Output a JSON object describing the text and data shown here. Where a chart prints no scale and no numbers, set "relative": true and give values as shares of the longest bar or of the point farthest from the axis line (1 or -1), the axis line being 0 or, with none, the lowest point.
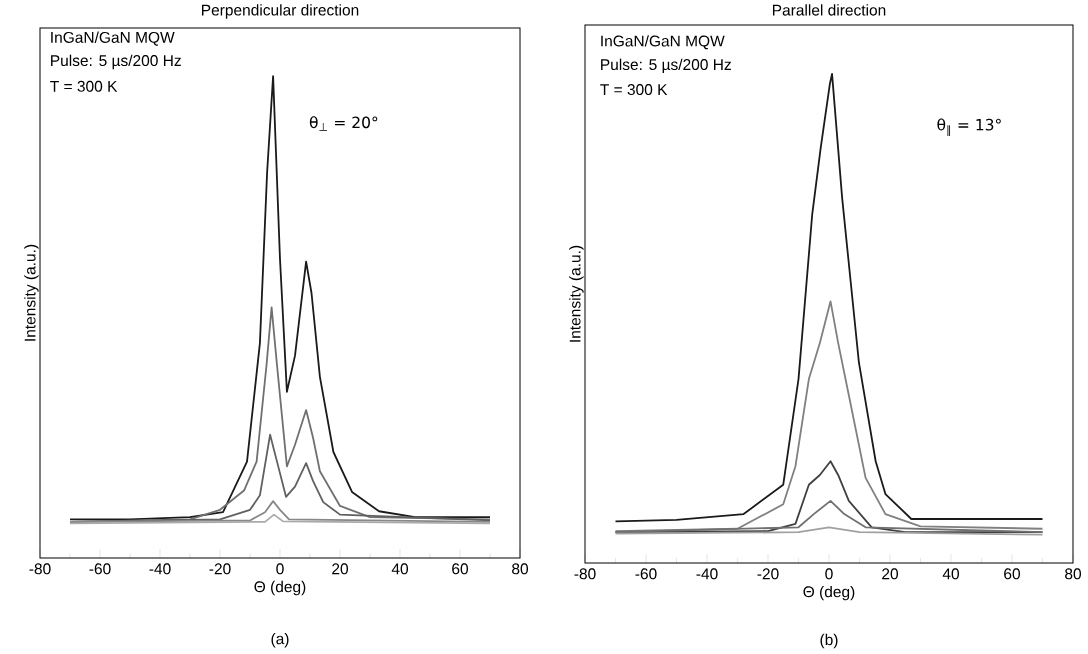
{
  "chart_data": [
    {
      "type": "line",
      "title": "Perpendicular direction",
      "xlabel": "Θ (deg)",
      "ylabel": "Intensity (a.u.)",
      "relative": true,
      "xlim": [
        -80,
        80
      ],
      "xticks": [
        -80,
        -60,
        -40,
        -20,
        0,
        20,
        40,
        60,
        80
      ],
      "tick_labels": "x",
      "grid": false,
      "marker": "none",
      "line_style": "solid",
      "annotations": [
        "InGaN/GaN MQW",
        "Pulse: 5 µs/200 Hz",
        "T = 300 K",
        "θ$_{⊥}$ = 20°",
        "(a)"
      ],
      "series": [
        {
          "color": "#1a1a1a",
          "x": [
            -70,
            -50,
            -30,
            -19,
            -11,
            -6.7,
            -4.3,
            -2.3,
            0,
            2.3,
            5,
            8.7,
            10.5,
            13.3,
            17.8,
            24,
            33,
            45,
            70
          ],
          "values": [
            0.08,
            0.08,
            0.085,
            0.095,
            0.2,
            0.446,
            0.8,
            1.0,
            0.62,
            0.345,
            0.42,
            0.615,
            0.55,
            0.376,
            0.22,
            0.137,
            0.097,
            0.085,
            0.085
          ]
        },
        {
          "color": "#707070",
          "x": [
            -70,
            -30,
            -20,
            -12,
            -7.8,
            -4.5,
            -2.8,
            -1,
            2.3,
            5,
            8.7,
            11,
            13.3,
            20,
            30,
            70
          ],
          "values": [
            0.075,
            0.08,
            0.1,
            0.14,
            0.2,
            0.4,
            0.52,
            0.4,
            0.19,
            0.235,
            0.307,
            0.25,
            0.18,
            0.108,
            0.085,
            0.08
          ]
        },
        {
          "color": "#606060",
          "x": [
            -70,
            -20,
            -10,
            -6.7,
            -3.3,
            -1,
            2,
            5,
            8.7,
            11,
            14.4,
            20,
            70
          ],
          "values": [
            0.075,
            0.08,
            0.1,
            0.13,
            0.256,
            0.2,
            0.127,
            0.148,
            0.197,
            0.16,
            0.116,
            0.09,
            0.078
          ]
        },
        {
          "color": "#888888",
          "x": [
            -70,
            -10,
            -5,
            -2.3,
            0,
            3,
            70
          ],
          "values": [
            0.075,
            0.078,
            0.095,
            0.118,
            0.1,
            0.08,
            0.075
          ]
        },
        {
          "color": "#aaaaaa",
          "x": [
            -70,
            -5,
            -2,
            1,
            70
          ],
          "values": [
            0.072,
            0.075,
            0.09,
            0.076,
            0.072
          ]
        }
      ]
    },
    {
      "type": "line",
      "title": "Parallel direction",
      "xlabel": "Θ (deg)",
      "ylabel": "Intensity (a.u.)",
      "relative": true,
      "xlim": [
        -80,
        80
      ],
      "xticks": [
        -80,
        -60,
        -40,
        -20,
        0,
        20,
        40,
        60,
        80
      ],
      "tick_labels": "x",
      "grid": false,
      "marker": "none",
      "line_style": "solid",
      "annotations": [
        "InGaN/GaN MQW",
        "Pulse: 5 µs/200 Hz",
        "T = 300 K",
        "θ$_{∥}$ = 13°",
        "(b)"
      ],
      "series": [
        {
          "color": "#1a1a1a",
          "x": [
            -70,
            -50,
            -28,
            -15,
            -10,
            -5.5,
            -2.7,
            0.3,
            1,
            4.3,
            9.8,
            15.3,
            18.5,
            27,
            45,
            70
          ],
          "values": [
            0.085,
            0.088,
            0.1,
            0.16,
            0.376,
            0.713,
            0.85,
            0.98,
            1.0,
            0.747,
            0.41,
            0.208,
            0.141,
            0.09,
            0.09,
            0.09
          ]
        },
        {
          "color": "#808080",
          "x": [
            -70,
            -30,
            -15,
            -11,
            -6.6,
            -3,
            0.5,
            3,
            6.5,
            12,
            18.5,
            30,
            70
          ],
          "values": [
            0.065,
            0.07,
            0.12,
            0.198,
            0.376,
            0.45,
            0.535,
            0.45,
            0.343,
            0.174,
            0.1,
            0.075,
            0.07
          ]
        },
        {
          "color": "#404040",
          "x": [
            -70,
            -20,
            -11,
            -6.6,
            -3,
            0.5,
            3,
            6.5,
            14,
            25,
            70
          ],
          "values": [
            0.063,
            0.065,
            0.08,
            0.16,
            0.18,
            0.208,
            0.18,
            0.127,
            0.073,
            0.063,
            0.063
          ]
        },
        {
          "color": "#707070",
          "x": [
            -70,
            -10,
            -5,
            0.5,
            5,
            12,
            70
          ],
          "values": [
            0.063,
            0.073,
            0.1,
            0.127,
            0.1,
            0.073,
            0.063
          ]
        },
        {
          "color": "#a0a0a0",
          "x": [
            -70,
            -10,
            0,
            10,
            70
          ],
          "values": [
            0.06,
            0.063,
            0.073,
            0.063,
            0.058
          ]
        }
      ]
    }
  ]
}
